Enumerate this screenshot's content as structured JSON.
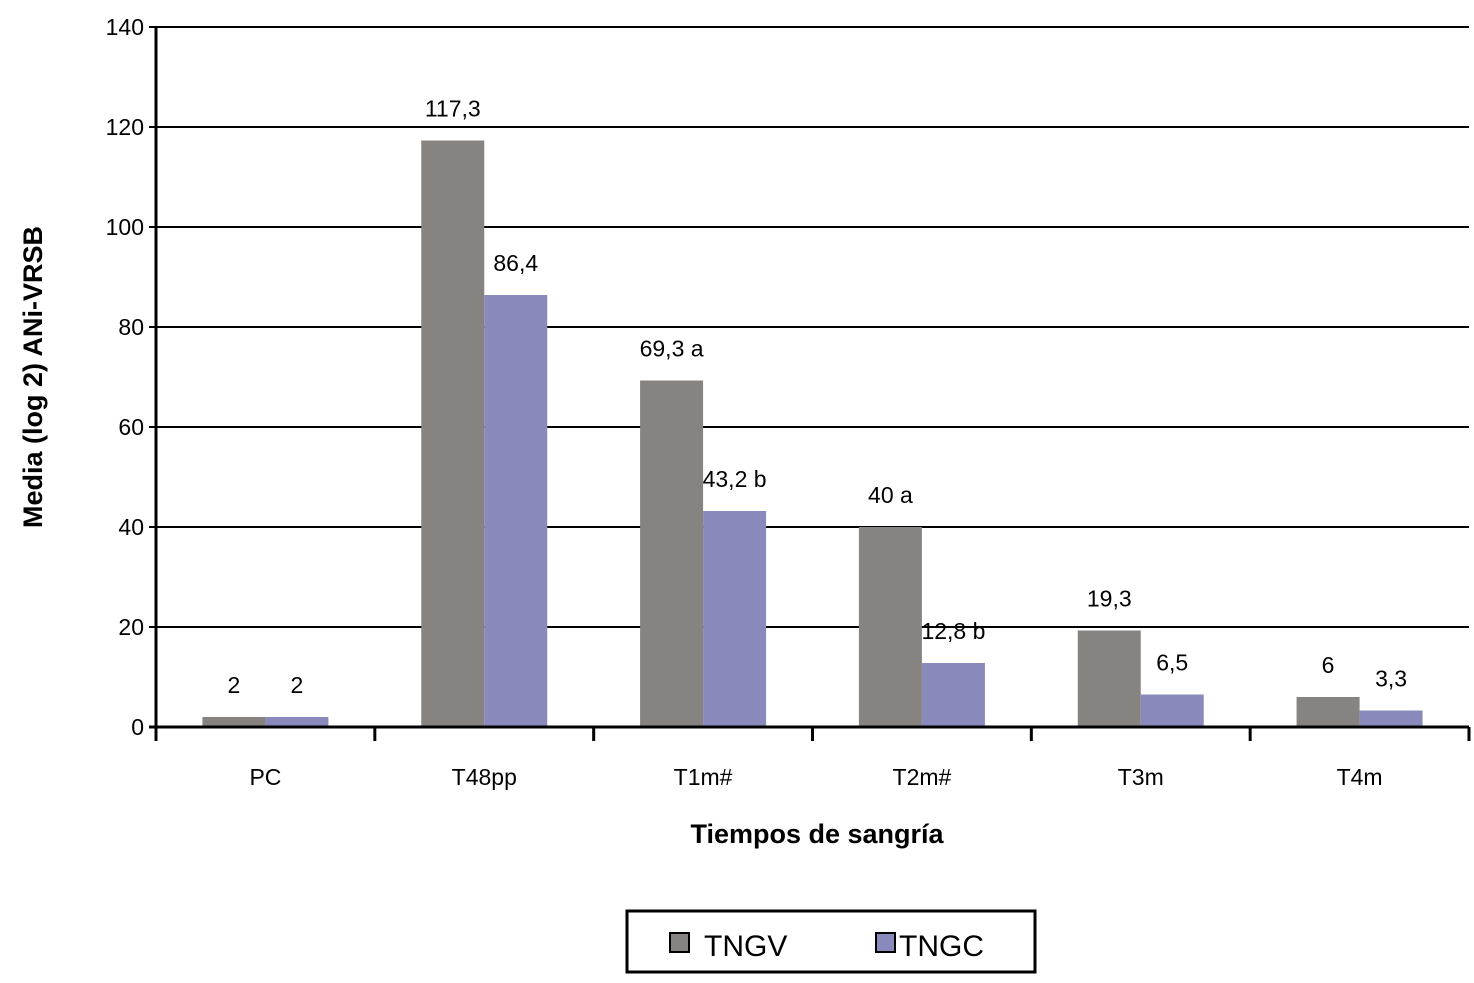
{
  "chart_data": {
    "type": "bar",
    "title": "",
    "xlabel": "Tiempos de sangría",
    "ylabel": "Media (log 2) ANi-VRSB",
    "ylim": [
      0,
      140
    ],
    "yticks": [
      0,
      20,
      40,
      60,
      80,
      100,
      120,
      140
    ],
    "grid": true,
    "legend_placement": "bottom",
    "categories": [
      "PC",
      "T48pp",
      "T1m#",
      "T2m#",
      "T3m",
      "T4m"
    ],
    "series": [
      {
        "name": "TNGV",
        "color": "#878380",
        "values": [
          2,
          117.3,
          69.3,
          40,
          19.3,
          6
        ],
        "labels": [
          "2",
          "117,3",
          "69,3 a",
          "40 a",
          "19,3",
          "6"
        ]
      },
      {
        "name": "TNGC",
        "color": "#8a89bc",
        "values": [
          2,
          86.4,
          43.2,
          12.8,
          6.5,
          3.3
        ],
        "labels": [
          "2",
          "86,4",
          "43,2 b",
          "12,8 b",
          "6,5",
          "3,3"
        ]
      }
    ]
  }
}
